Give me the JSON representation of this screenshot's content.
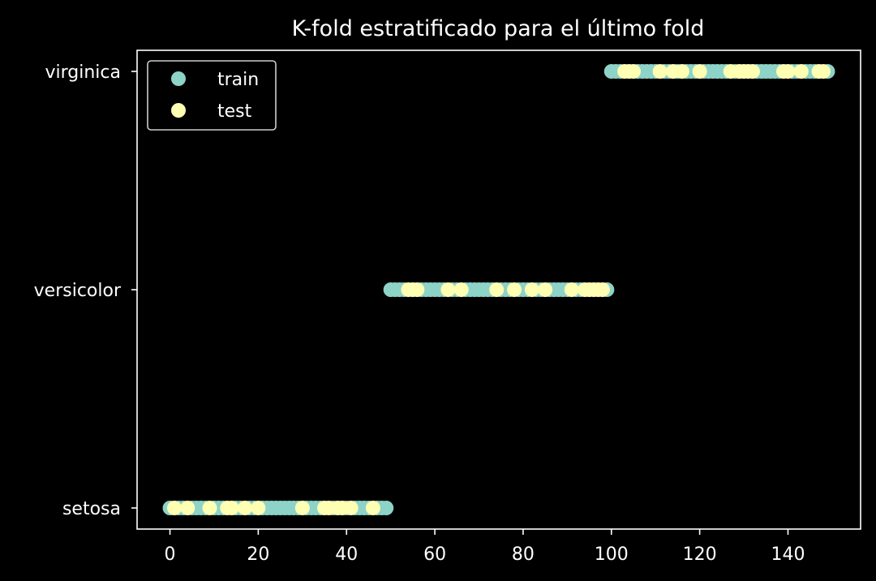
{
  "chart_data": {
    "type": "scatter",
    "title": "K-fold estratificado para el último fold",
    "xlabel": "",
    "ylabel": "",
    "xlim": [
      -7.45,
      156.45
    ],
    "x_ticks": [
      0,
      20,
      40,
      60,
      80,
      100,
      120,
      140
    ],
    "y_categories": [
      "setosa",
      "versicolor",
      "virginica"
    ],
    "legend_position": "upper left",
    "series": [
      {
        "name": "train",
        "color": "#8dd3c7",
        "points": [
          {
            "category": "setosa",
            "x": [
              0,
              2,
              3,
              5,
              6,
              7,
              8,
              10,
              11,
              12,
              15,
              16,
              18,
              19,
              21,
              22,
              23,
              24,
              25,
              26,
              27,
              28,
              29,
              31,
              32,
              33,
              34,
              37,
              40,
              42,
              43,
              44,
              45,
              47,
              48,
              49
            ]
          },
          {
            "category": "versicolor",
            "x": [
              50,
              51,
              52,
              53,
              57,
              58,
              59,
              60,
              61,
              62,
              64,
              65,
              67,
              68,
              69,
              70,
              71,
              72,
              73,
              75,
              76,
              77,
              79,
              80,
              81,
              83,
              84,
              86,
              87,
              88,
              89,
              90,
              92,
              93,
              99
            ]
          },
          {
            "category": "virginica",
            "x": [
              100,
              101,
              102,
              106,
              107,
              108,
              109,
              110,
              112,
              113,
              115,
              117,
              118,
              119,
              121,
              122,
              123,
              124,
              125,
              126,
              128,
              133,
              134,
              135,
              136,
              137,
              138,
              141,
              142,
              144,
              145,
              146,
              149
            ]
          }
        ]
      },
      {
        "name": "test",
        "color": "#ffffb3",
        "points": [
          {
            "category": "setosa",
            "x": [
              1,
              4,
              9,
              13,
              14,
              17,
              20,
              30,
              35,
              36,
              38,
              39,
              41,
              46
            ]
          },
          {
            "category": "versicolor",
            "x": [
              54,
              55,
              56,
              63,
              66,
              74,
              78,
              82,
              85,
              91,
              94,
              95,
              96,
              97,
              98
            ]
          },
          {
            "category": "virginica",
            "x": [
              103,
              104,
              105,
              111,
              114,
              116,
              120,
              127,
              129,
              130,
              131,
              132,
              139,
              140,
              143,
              147,
              148
            ]
          }
        ]
      }
    ]
  }
}
